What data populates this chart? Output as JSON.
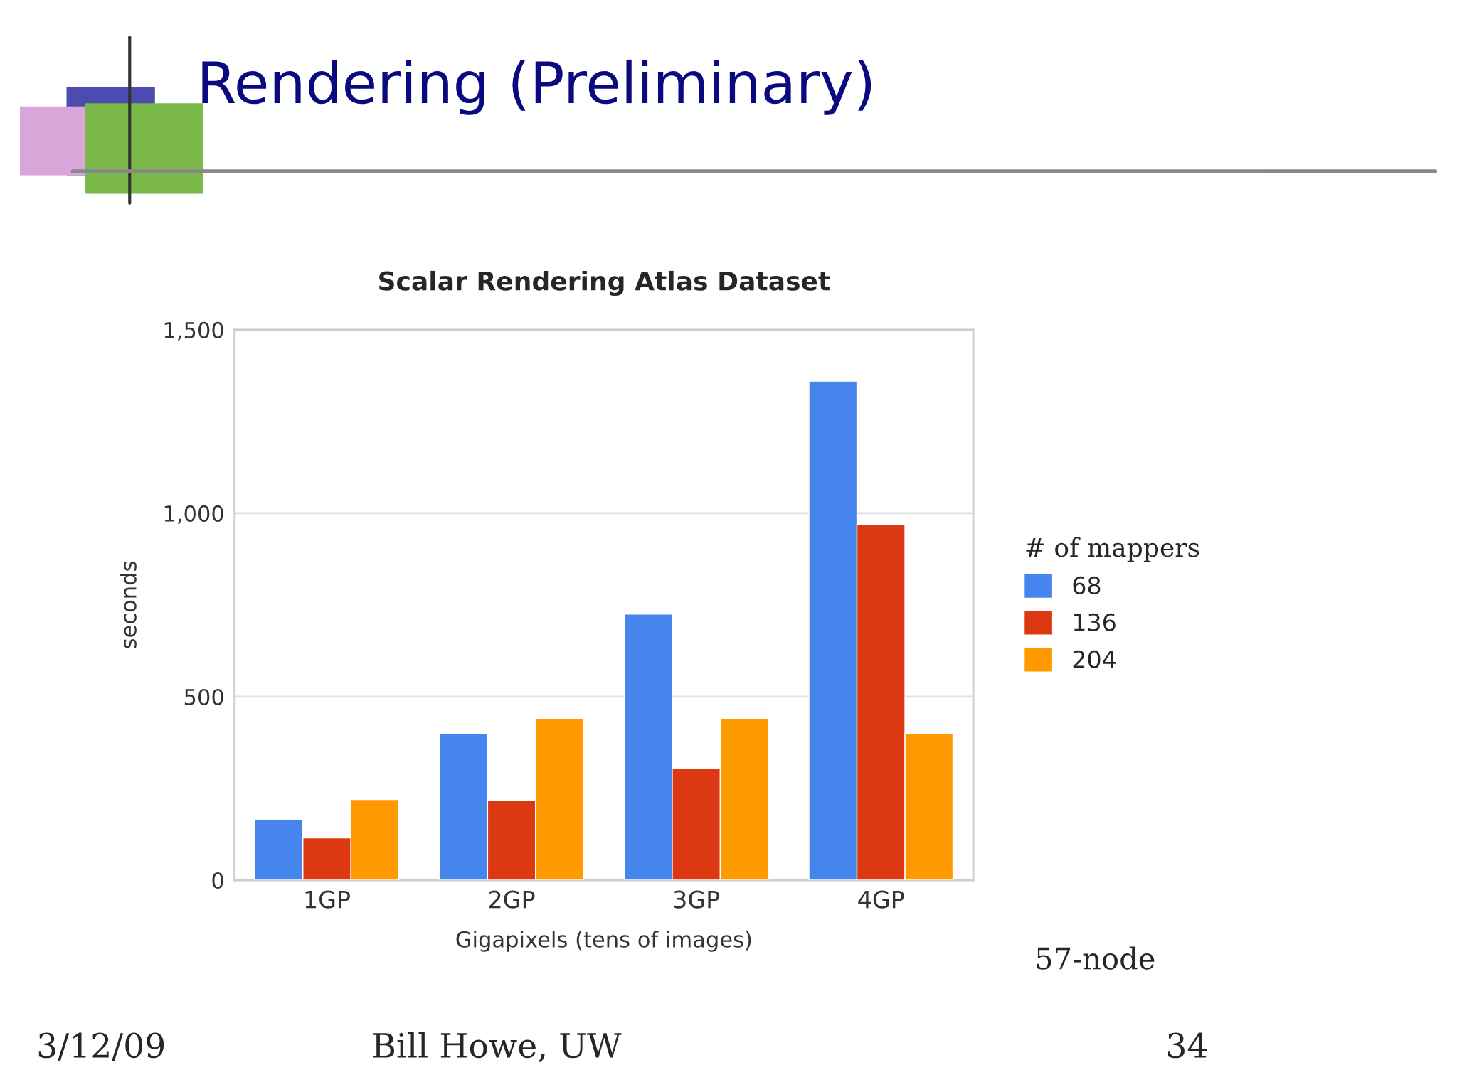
{
  "chart_data": {
    "type": "bar",
    "title": "Rendering (Preliminary)",
    "subtitle": "Scalar Rendering Atlas Dataset",
    "xlabel": "Gigapixels (tens of images)",
    "ylabel": "seconds",
    "legend_title": "# of mappers",
    "categories": [
      "1GP",
      "2GP",
      "3GP",
      "4GP"
    ],
    "series": [
      {
        "name": "68",
        "color": "#4684ee",
        "values": [
          165,
          400,
          725,
          1360
        ]
      },
      {
        "name": "136",
        "color": "#dc3912",
        "values": [
          115,
          218,
          305,
          970
        ]
      },
      {
        "name": "204",
        "color": "#ff9900",
        "values": [
          220,
          440,
          440,
          400
        ]
      }
    ],
    "ylim": [
      0,
      1500
    ],
    "yticks": [
      0,
      {
        "value": 500,
        "label": "500"
      },
      {
        "value": 1000,
        "label": "1,000"
      },
      {
        "value": 1500,
        "label": "1,500"
      }
    ],
    "grid": "y",
    "legend": "right",
    "annotations": [
      "57-node",
      "3/12/09",
      "Bill Howe, UW",
      "34"
    ]
  }
}
